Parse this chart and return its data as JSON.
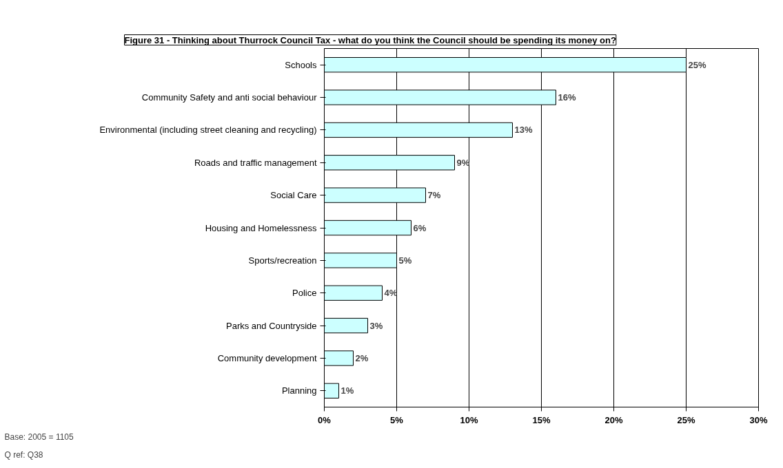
{
  "chart_data": {
    "type": "bar",
    "orientation": "horizontal",
    "title": "Figure 31 - Thinking about Thurrock Council Tax - what do you think the Council should be spending its money on?",
    "categories": [
      "Schools",
      "Community Safety and anti social behaviour",
      "Environmental (including street cleaning and recycling)",
      "Roads and traffic management",
      "Social Care",
      "Housing and Homelessness",
      "Sports/recreation",
      "Police",
      "Parks and Countryside",
      "Community development",
      "Planning"
    ],
    "values": [
      25,
      16,
      13,
      9,
      7,
      6,
      5,
      4,
      3,
      2,
      1
    ],
    "value_labels": [
      "25%",
      "16%",
      "13%",
      "9%",
      "7%",
      "6%",
      "5%",
      "4%",
      "3%",
      "2%",
      "1%"
    ],
    "color": "#ccffff",
    "xlim": [
      0,
      30
    ],
    "xticks": [
      {
        "value": 0,
        "label": "0%"
      },
      {
        "value": 5,
        "label": "5%"
      },
      {
        "value": 10,
        "label": "10%"
      },
      {
        "value": 15,
        "label": "15%"
      },
      {
        "value": 20,
        "label": "20%"
      },
      {
        "value": 25,
        "label": "25%"
      },
      {
        "value": 30,
        "label": "30%"
      }
    ],
    "grid": "x",
    "annotations": [
      "Base: 2005 = 1105",
      "Q ref: Q38"
    ]
  }
}
